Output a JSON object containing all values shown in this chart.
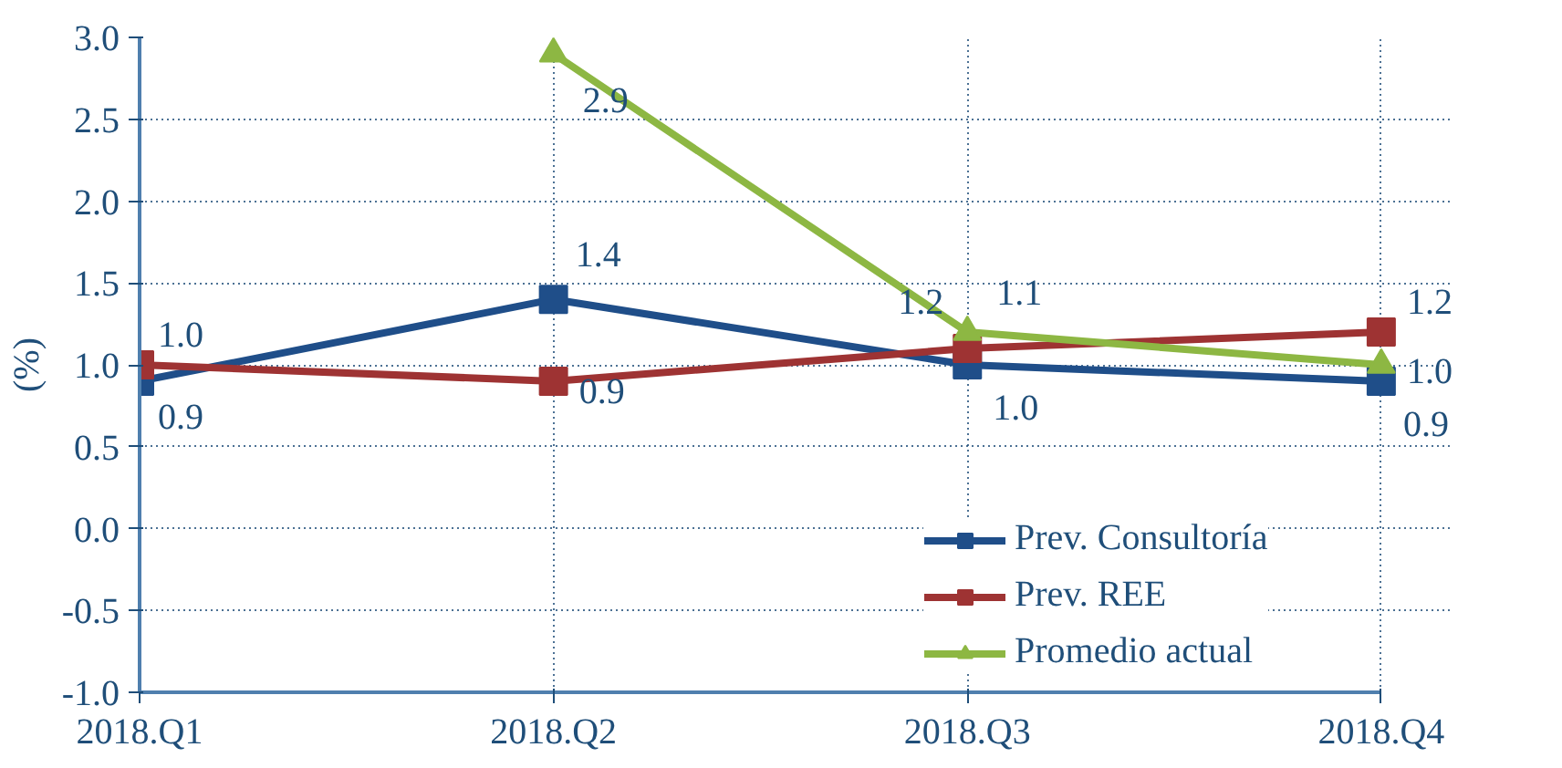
{
  "chart_data": {
    "type": "line",
    "ylabel": "(%)",
    "categories": [
      "2018.Q1",
      "2018.Q2",
      "2018.Q3",
      "2018.Q4"
    ],
    "series": [
      {
        "name": "Prev. Consultoría",
        "color": "#1f4e89",
        "marker": "square",
        "values": [
          0.9,
          1.4,
          1.0,
          0.9
        ],
        "value_labels": [
          "0.9",
          "1.4",
          "1.0",
          "0.9"
        ]
      },
      {
        "name": "Prev. REE",
        "color": "#9e3333",
        "marker": "square",
        "values": [
          1.0,
          0.9,
          1.1,
          1.2
        ],
        "value_labels": [
          "1.0",
          "0.9",
          "1.1",
          "1.2"
        ]
      },
      {
        "name": "Promedio actual",
        "color": "#8db743",
        "marker": "triangle",
        "values": [
          null,
          2.9,
          1.2,
          1.0
        ],
        "value_labels": [
          null,
          "2.9",
          "1.2",
          "1.0"
        ]
      }
    ],
    "ylim": [
      -1.0,
      3.0
    ],
    "yticks": [
      {
        "value": -1,
        "label": "-1.0"
      },
      {
        "value": -0.5,
        "label": "-0.5"
      },
      {
        "value": 0,
        "label": "0.0"
      },
      {
        "value": 0.5,
        "label": "0.5"
      },
      {
        "value": 1,
        "label": "1.0"
      },
      {
        "value": 1.5,
        "label": "1.5"
      },
      {
        "value": 2,
        "label": "2.0"
      },
      {
        "value": 2.5,
        "label": "2.5"
      },
      {
        "value": 3,
        "label": "3.0"
      }
    ],
    "grid": true,
    "legend": "bottom right",
    "line_style": "solid"
  }
}
